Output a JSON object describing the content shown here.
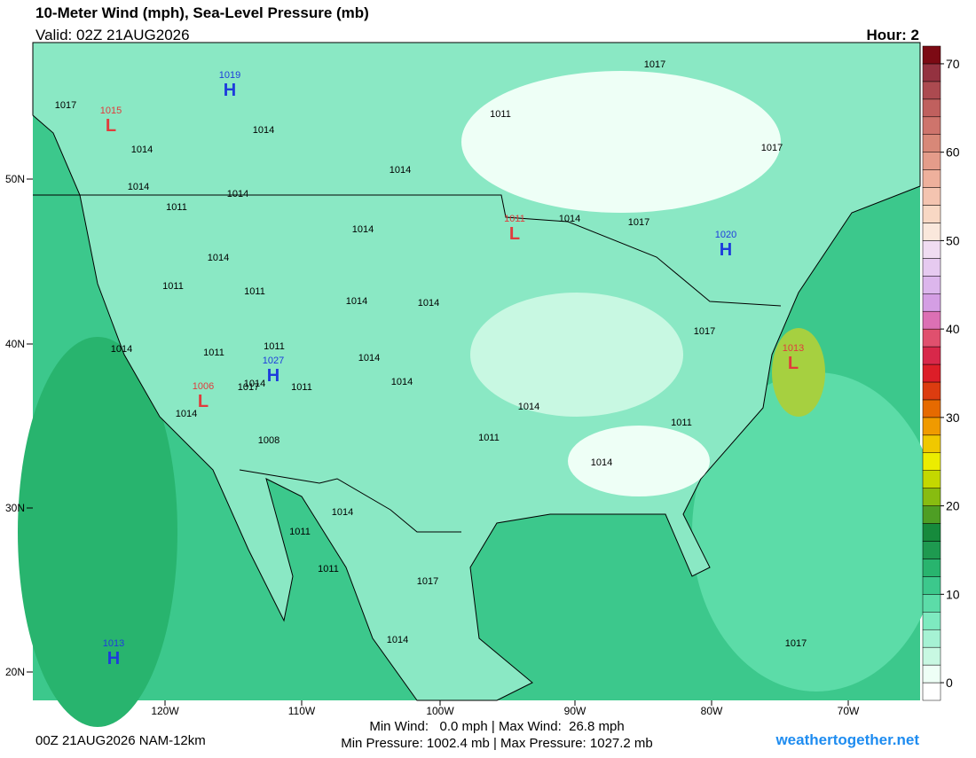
{
  "header": {
    "title": "10-Meter Wind (mph), Sea-Level Pressure (mb)",
    "valid": "Valid: 02Z 21AUG2026",
    "hour": "Hour: 2"
  },
  "map": {
    "lat_labels": [
      "50N",
      "40N",
      "30N",
      "20N"
    ],
    "lon_labels": [
      "120W",
      "110W",
      "100W",
      "90W",
      "80W",
      "70W"
    ],
    "centers": [
      {
        "letter": "H",
        "pressure": "1019"
      },
      {
        "letter": "L",
        "pressure": "1015"
      },
      {
        "letter": "L",
        "pressure": "1011"
      },
      {
        "letter": "H",
        "pressure": "1020"
      },
      {
        "letter": "H",
        "pressure": "1027"
      },
      {
        "letter": "L",
        "pressure": "1006"
      },
      {
        "letter": "L",
        "pressure": "1013"
      },
      {
        "letter": "H",
        "pressure": "1013"
      }
    ],
    "isobar_labels": [
      "1017",
      "1014",
      "1014",
      "1011",
      "1014",
      "1017",
      "1014",
      "1011",
      "1014",
      "1014",
      "1014",
      "1017",
      "1017",
      "1014",
      "1011",
      "1011",
      "1014",
      "1014",
      "1011",
      "1017",
      "1014",
      "1011",
      "1014",
      "1014",
      "1017",
      "1011",
      "1011",
      "1014",
      "1011",
      "1014",
      "1008",
      "1011",
      "1011",
      "1017",
      "1014",
      "1014",
      "1014",
      "1017",
      "1014"
    ]
  },
  "colorbar": {
    "lim": [
      -2,
      72
    ],
    "ticks": [
      0,
      10,
      20,
      30,
      40,
      50,
      60,
      70
    ],
    "colors": [
      "#ffffff",
      "#eefff6",
      "#c8f8e2",
      "#a6f2d4",
      "#7eeac0",
      "#5cdca8",
      "#3cc88c",
      "#28b46e",
      "#1e9a50",
      "#168a3c",
      "#4e9e24",
      "#88bc10",
      "#c4d800",
      "#ecec00",
      "#f0c800",
      "#f09a00",
      "#e66a00",
      "#dc3c10",
      "#dc1e28",
      "#d8284a",
      "#e0506e",
      "#dc70b4",
      "#d49ee4",
      "#dcb6ec",
      "#e6caf0",
      "#f0dcf2",
      "#fae8dc",
      "#f8d8c4",
      "#f4c4b0",
      "#eeb09c",
      "#e49c8a",
      "#d88878",
      "#ce746c",
      "#c0605e",
      "#ac4a50",
      "#943240",
      "#7c0a14"
    ]
  },
  "footer": {
    "run": "00Z 21AUG2026 NAM-12km",
    "wind": "Min Wind:   0.0 mph | Max Wind:  26.8 mph",
    "pressure": "Min Pressure: 1002.4 mb | Max Pressure: 1027.2 mb",
    "site": "weathertogether.net"
  }
}
